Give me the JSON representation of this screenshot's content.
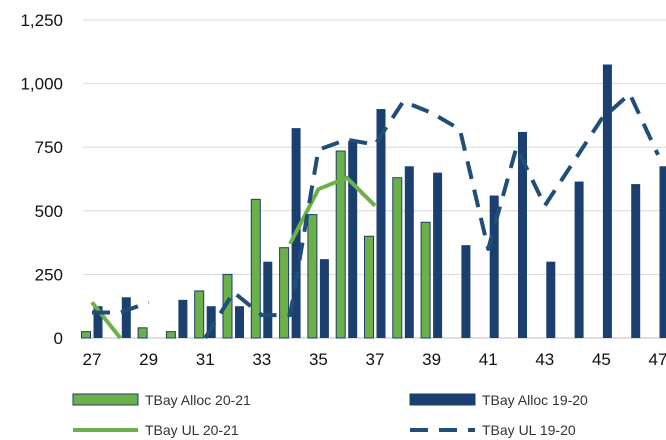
{
  "chart_data": {
    "type": "bar",
    "x": [
      27,
      28,
      29,
      30,
      31,
      32,
      33,
      34,
      35,
      36,
      37,
      38,
      39,
      40,
      41,
      42,
      43,
      44,
      45,
      46,
      47
    ],
    "x_tick_labels": [
      "27",
      "29",
      "31",
      "33",
      "35",
      "37",
      "39",
      "41",
      "43",
      "45",
      "47"
    ],
    "ylim": [
      0,
      1250
    ],
    "y_tick_labels": [
      "0",
      "250",
      "500",
      "750",
      "1,000",
      "1,250"
    ],
    "y_ticks": [
      0,
      250,
      500,
      750,
      1000,
      1250
    ],
    "grid": "horizontal",
    "legend_position": "bottom",
    "series": [
      {
        "name": "TBay Alloc 20-21",
        "kind": "bar",
        "color": "#6cb04a",
        "values": [
          25,
          null,
          40,
          25,
          185,
          250,
          545,
          355,
          485,
          735,
          400,
          630,
          455,
          null,
          null,
          null,
          null,
          null,
          null,
          null,
          null
        ]
      },
      {
        "name": "TBay Alloc 19-20",
        "kind": "bar",
        "color": "#1b3f6e",
        "values": [
          125,
          160,
          null,
          150,
          125,
          125,
          300,
          825,
          310,
          775,
          900,
          675,
          650,
          365,
          560,
          810,
          300,
          615,
          1075,
          605,
          675
        ]
      },
      {
        "name": "TBay UL 20-21",
        "kind": "line",
        "style": "solid",
        "color": "#6cb04a",
        "values": [
          140,
          0,
          null,
          null,
          null,
          null,
          null,
          370,
          585,
          630,
          520,
          null,
          null,
          null,
          null,
          null,
          null,
          null,
          null,
          null,
          null
        ]
      },
      {
        "name": "TBay UL 19-20",
        "kind": "line",
        "style": "dashed",
        "color": "#1f4e79",
        "values": [
          100,
          100,
          140,
          null,
          0,
          180,
          90,
          90,
          740,
          780,
          760,
          930,
          885,
          820,
          350,
          750,
          520,
          690,
          860,
          960,
          720
        ]
      }
    ]
  }
}
